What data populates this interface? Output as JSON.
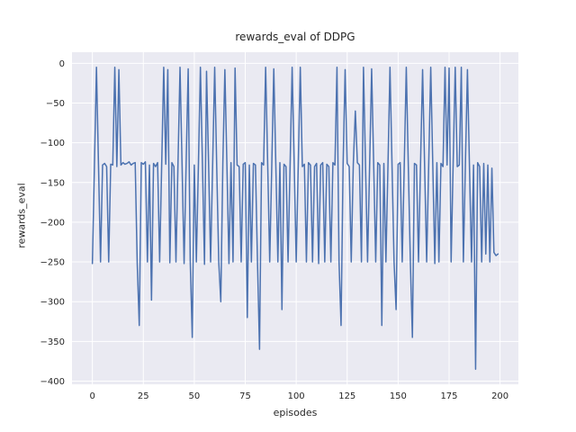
{
  "chart_data": {
    "type": "line",
    "title": "rewards_eval of DDPG",
    "xlabel": "episodes",
    "ylabel": "rewards_eval",
    "x_range": [
      0,
      199
    ],
    "xlim": [
      -10,
      209
    ],
    "ylim": [
      -404,
      14
    ],
    "xticks": [
      0,
      25,
      50,
      75,
      100,
      125,
      150,
      175,
      200
    ],
    "xtick_labels": [
      "0",
      "25",
      "50",
      "75",
      "100",
      "125",
      "150",
      "175",
      "200"
    ],
    "yticks": [
      0,
      -50,
      -100,
      -150,
      -200,
      -250,
      -300,
      -350,
      -400
    ],
    "ytick_labels": [
      "0",
      "−50",
      "−100",
      "−150",
      "−200",
      "−250",
      "−300",
      "−350",
      "−400"
    ],
    "grid": true,
    "legend": "none",
    "colors": {
      "line": "#4c72b0",
      "plot_background": "#eaeaf2",
      "grid": "#ffffff",
      "text": "#262626",
      "figure_background": "#ffffff"
    },
    "series": [
      {
        "name": "rewards_eval",
        "values": [
          -252,
          -130,
          -5,
          -128,
          -250,
          -128,
          -126,
          -130,
          -250,
          -127,
          -128,
          -5,
          -130,
          -8,
          -128,
          -125,
          -127,
          -126,
          -124,
          -128,
          -126,
          -125,
          -252,
          -330,
          -125,
          -127,
          -124,
          -250,
          -128,
          -298,
          -126,
          -130,
          -125,
          -250,
          -128,
          -5,
          -127,
          -8,
          -251,
          -125,
          -130,
          -250,
          -126,
          -5,
          -128,
          -252,
          -125,
          -7,
          -248,
          -345,
          -128,
          -250,
          -130,
          -5,
          -127,
          -253,
          -10,
          -125,
          -250,
          -128,
          -5,
          -130,
          -250,
          -300,
          -126,
          -8,
          -128,
          -252,
          -125,
          -250,
          -6,
          -128,
          -130,
          -250,
          -127,
          -125,
          -320,
          -128,
          -250,
          -126,
          -128,
          -250,
          -360,
          -125,
          -128,
          -5,
          -126,
          -250,
          -130,
          -7,
          -128,
          -250,
          -125,
          -310,
          -127,
          -130,
          -250,
          -128,
          -5,
          -126,
          -250,
          -128,
          -5,
          -130,
          -127,
          -250,
          -125,
          -128,
          -250,
          -130,
          -126,
          -252,
          -128,
          -125,
          -250,
          -127,
          -130,
          -250,
          -125,
          -128,
          -5,
          -250,
          -330,
          -128,
          -8,
          -126,
          -130,
          -250,
          -127,
          -60,
          -125,
          -128,
          -250,
          -5,
          -128,
          -250,
          -130,
          -7,
          -127,
          -250,
          -125,
          -128,
          -330,
          -126,
          -250,
          -130,
          -5,
          -128,
          -250,
          -310,
          -127,
          -125,
          -250,
          -128,
          -5,
          -130,
          -250,
          -345,
          -126,
          -128,
          -250,
          -125,
          -8,
          -130,
          -250,
          -127,
          -5,
          -128,
          -252,
          -125,
          -250,
          -126,
          -130,
          -5,
          -128,
          -6,
          -250,
          -125,
          -5,
          -130,
          -128,
          -5,
          -250,
          -127,
          -8,
          -130,
          -250,
          -128,
          -385,
          -125,
          -130,
          -250,
          -126,
          -240,
          -128,
          -250,
          -132,
          -238,
          -242,
          -240
        ]
      }
    ]
  }
}
